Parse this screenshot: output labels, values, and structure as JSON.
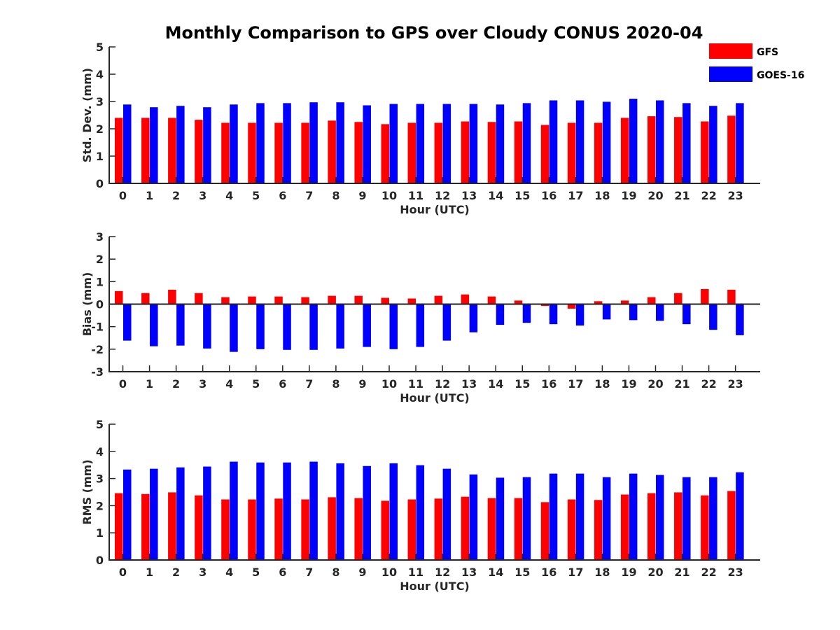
{
  "title": "Monthly Comparison to GPS over Cloudy CONUS 2020-04",
  "legend": [
    {
      "name": "GFS",
      "color": "#ff0000"
    },
    {
      "name": "GOES-16",
      "color": "#0000ff"
    }
  ],
  "chart_data": [
    {
      "type": "bar",
      "ylabel": "Std. Dev. (mm)",
      "xlabel": "Hour (UTC)",
      "categories": [
        "0",
        "1",
        "2",
        "3",
        "4",
        "5",
        "6",
        "7",
        "8",
        "9",
        "10",
        "11",
        "12",
        "13",
        "14",
        "15",
        "16",
        "17",
        "18",
        "19",
        "20",
        "21",
        "22",
        "23"
      ],
      "ylim": [
        0,
        5
      ],
      "yticks": [
        0,
        1,
        2,
        3,
        4,
        5
      ],
      "series": [
        {
          "name": "GFS",
          "color": "#ff0000",
          "values": [
            2.4,
            2.4,
            2.4,
            2.33,
            2.22,
            2.22,
            2.22,
            2.22,
            2.3,
            2.25,
            2.17,
            2.22,
            2.22,
            2.27,
            2.25,
            2.27,
            2.14,
            2.22,
            2.22,
            2.4,
            2.46,
            2.43,
            2.27,
            2.48
          ]
        },
        {
          "name": "GOES-16",
          "color": "#0000ff",
          "values": [
            2.89,
            2.79,
            2.84,
            2.79,
            2.89,
            2.94,
            2.94,
            2.97,
            2.97,
            2.86,
            2.91,
            2.91,
            2.91,
            2.91,
            2.89,
            2.94,
            3.04,
            3.04,
            2.99,
            3.1,
            3.04,
            2.94,
            2.84,
            2.94
          ]
        }
      ]
    },
    {
      "type": "bar",
      "ylabel": "Bias (mm)",
      "xlabel": "Hour (UTC)",
      "categories": [
        "0",
        "1",
        "2",
        "3",
        "4",
        "5",
        "6",
        "7",
        "8",
        "9",
        "10",
        "11",
        "12",
        "13",
        "14",
        "15",
        "16",
        "17",
        "18",
        "19",
        "20",
        "21",
        "22",
        "23"
      ],
      "ylim": [
        -3,
        3
      ],
      "yticks": [
        -3,
        -2,
        -1,
        0,
        1,
        2,
        3
      ],
      "series": [
        {
          "name": "GFS",
          "color": "#ff0000",
          "values": [
            0.58,
            0.49,
            0.64,
            0.49,
            0.31,
            0.34,
            0.34,
            0.31,
            0.37,
            0.37,
            0.28,
            0.25,
            0.37,
            0.43,
            0.34,
            0.16,
            -0.08,
            -0.2,
            0.13,
            0.16,
            0.31,
            0.49,
            0.67,
            0.64
          ]
        },
        {
          "name": "GOES-16",
          "color": "#0000ff",
          "values": [
            -1.62,
            -1.87,
            -1.84,
            -1.97,
            -2.12,
            -2.0,
            -2.03,
            -2.03,
            -1.97,
            -1.9,
            -2.0,
            -1.9,
            -1.62,
            -1.25,
            -0.92,
            -0.83,
            -0.89,
            -0.95,
            -0.68,
            -0.71,
            -0.74,
            -0.89,
            -1.14,
            -1.38
          ]
        }
      ]
    },
    {
      "type": "bar",
      "ylabel": "RMS (mm)",
      "xlabel": "Hour (UTC)",
      "categories": [
        "0",
        "1",
        "2",
        "3",
        "4",
        "5",
        "6",
        "7",
        "8",
        "9",
        "10",
        "11",
        "12",
        "13",
        "14",
        "15",
        "16",
        "17",
        "18",
        "19",
        "20",
        "21",
        "22",
        "23"
      ],
      "ylim": [
        0,
        5
      ],
      "yticks": [
        0,
        1,
        2,
        3,
        4,
        5
      ],
      "series": [
        {
          "name": "GFS",
          "color": "#ff0000",
          "values": [
            2.46,
            2.43,
            2.49,
            2.38,
            2.23,
            2.23,
            2.26,
            2.23,
            2.31,
            2.28,
            2.18,
            2.23,
            2.26,
            2.33,
            2.28,
            2.28,
            2.13,
            2.23,
            2.21,
            2.41,
            2.46,
            2.49,
            2.38,
            2.54
          ]
        },
        {
          "name": "GOES-16",
          "color": "#0000ff",
          "values": [
            3.33,
            3.36,
            3.41,
            3.44,
            3.62,
            3.59,
            3.59,
            3.62,
            3.56,
            3.46,
            3.56,
            3.49,
            3.36,
            3.15,
            3.03,
            3.05,
            3.18,
            3.18,
            3.05,
            3.18,
            3.13,
            3.05,
            3.05,
            3.23
          ]
        }
      ]
    }
  ]
}
